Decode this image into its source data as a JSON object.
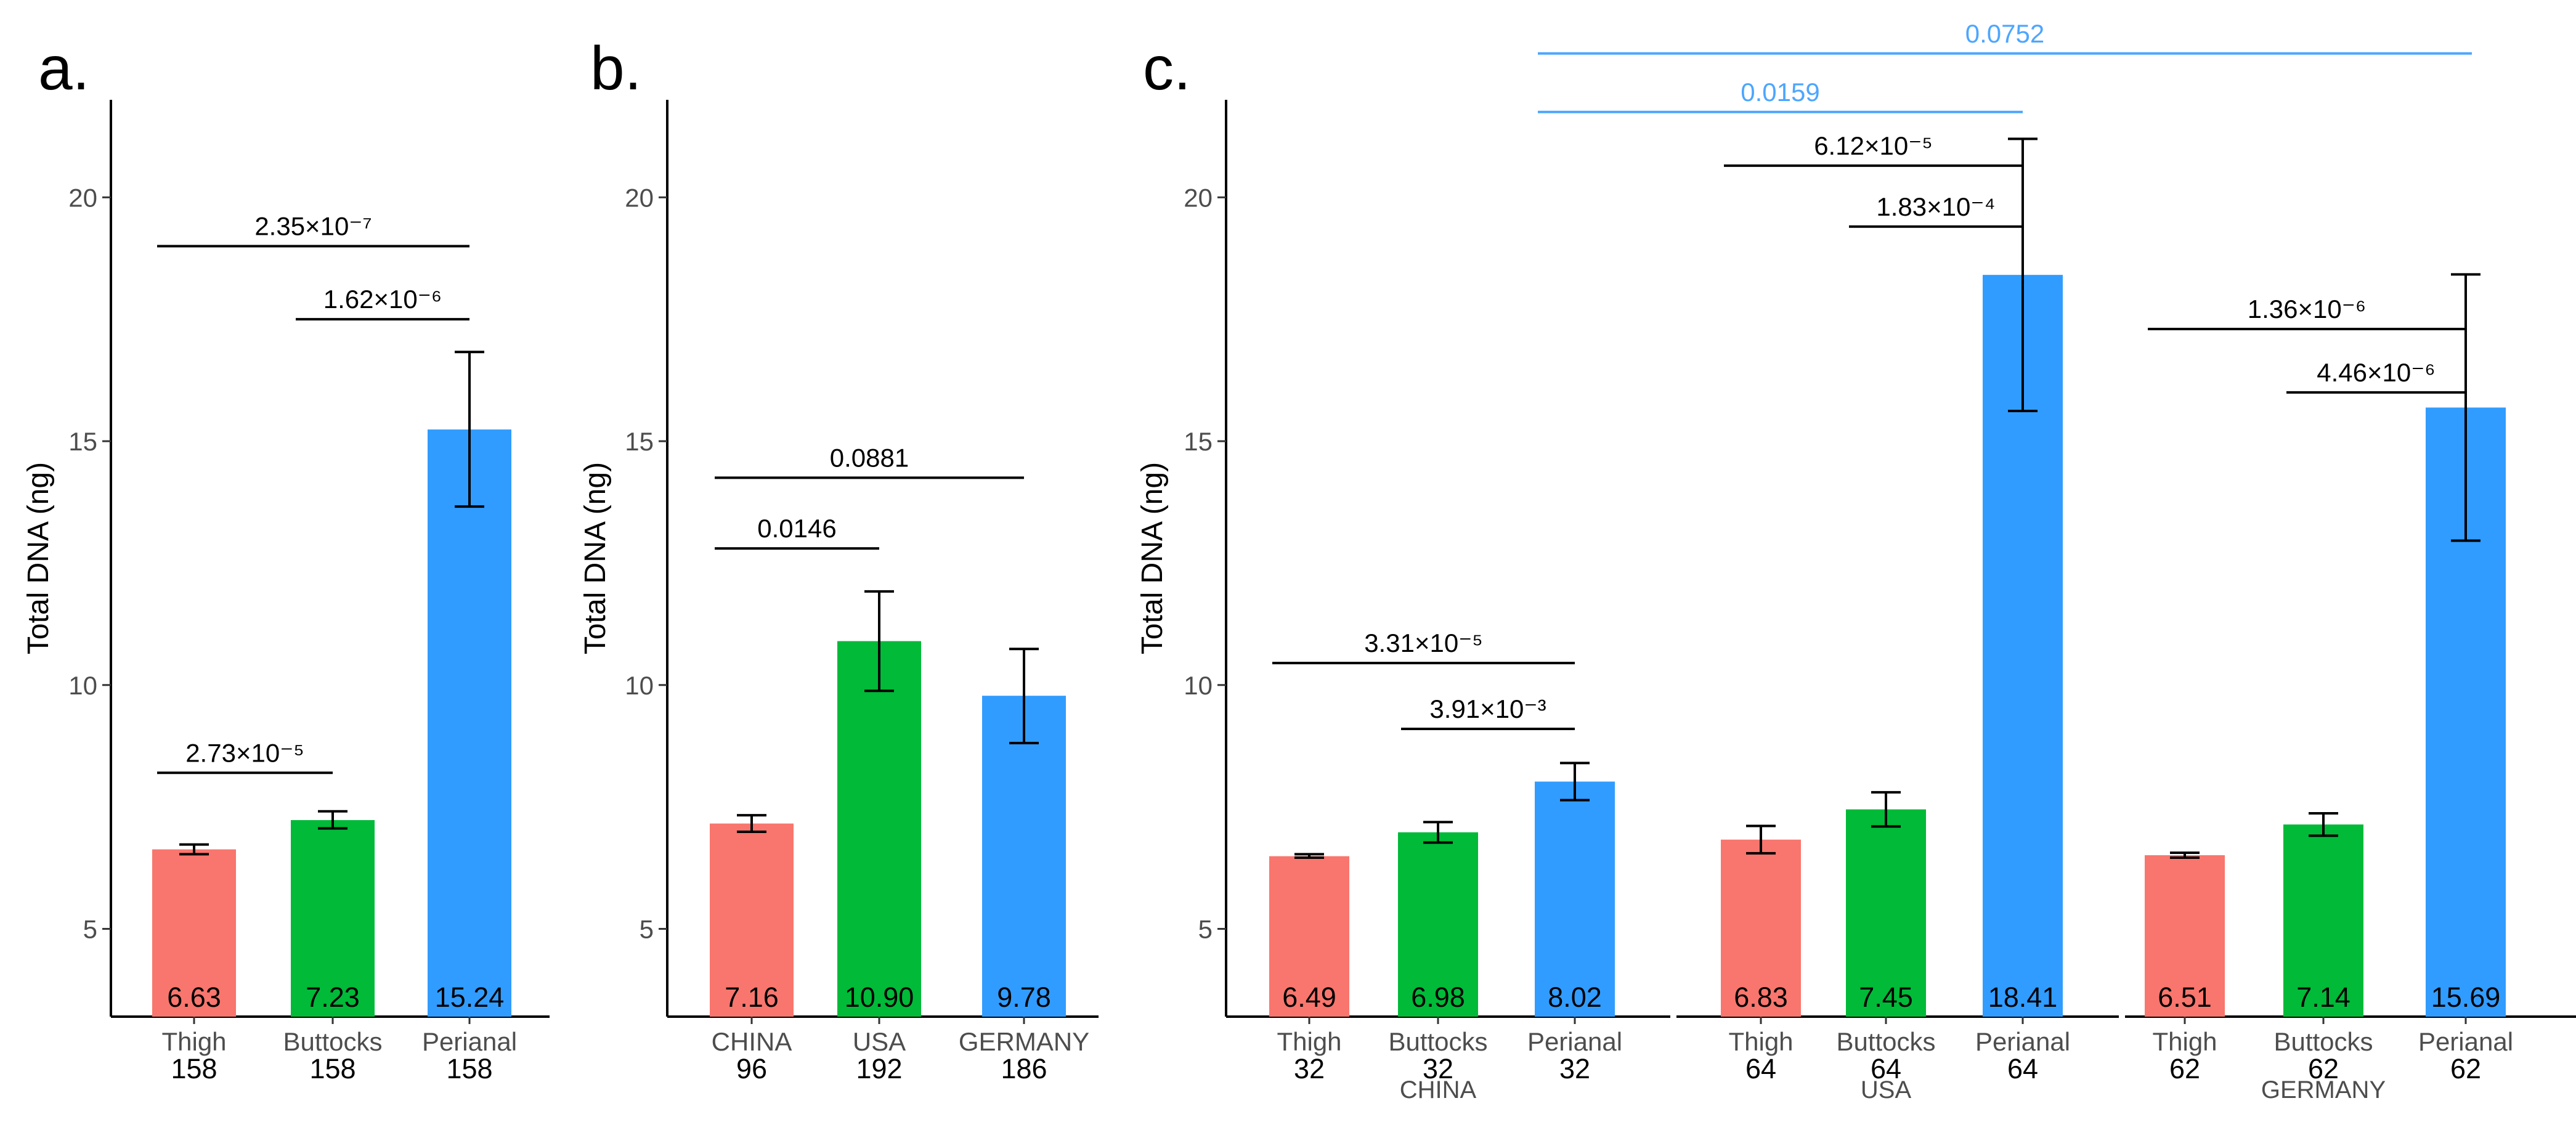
{
  "y_axis_label": "Total DNA (ng)",
  "chart_data": [
    {
      "type": "bar",
      "panel": "a.",
      "ylabel": "Total DNA (ng)",
      "ylim": [
        3.2,
        22
      ],
      "yticks": [
        5,
        10,
        15,
        20
      ],
      "categories": [
        "Thigh",
        "Buttocks",
        "Perianal"
      ],
      "n": [
        "158",
        "158",
        "158"
      ],
      "values": [
        6.63,
        7.23,
        15.24
      ],
      "value_labels": [
        "6.63",
        "7.23",
        "15.24"
      ],
      "errors": [
        [
          6.53,
          6.73
        ],
        [
          7.06,
          7.41
        ],
        [
          13.66,
          16.83
        ]
      ],
      "colors": [
        "#F8766D",
        "#00BA38",
        "#319CFF"
      ],
      "groups": [],
      "comparisons": [
        {
          "label": "2.35×10⁻⁷",
          "from": 0,
          "to": 2,
          "y": 19.0,
          "color": "#000000"
        },
        {
          "label": "1.62×10⁻⁶",
          "from": 1,
          "to": 2,
          "y": 17.5,
          "color": "#000000"
        },
        {
          "label": "2.73×10⁻⁵",
          "from": 0,
          "to": 1,
          "y": 8.2,
          "color": "#000000"
        }
      ]
    },
    {
      "type": "bar",
      "panel": "b.",
      "ylabel": "Total DNA (ng)",
      "ylim": [
        3.2,
        22
      ],
      "yticks": [
        5,
        10,
        15,
        20
      ],
      "categories": [
        "CHINA",
        "USA",
        "GERMANY"
      ],
      "n": [
        "96",
        "192",
        "186"
      ],
      "values": [
        7.16,
        10.9,
        9.78
      ],
      "value_labels": [
        "7.16",
        "10.90",
        "9.78"
      ],
      "errors": [
        [
          6.99,
          7.33
        ],
        [
          9.88,
          11.92
        ],
        [
          8.81,
          10.74
        ]
      ],
      "colors": [
        "#F8766D",
        "#00BA38",
        "#319CFF"
      ],
      "groups": [],
      "comparisons": [
        {
          "label": "0.0881",
          "from": 0,
          "to": 2,
          "y": 14.25,
          "color": "#000000"
        },
        {
          "label": "0.0146",
          "from": 0,
          "to": 1,
          "y": 12.8,
          "color": "#000000"
        }
      ]
    },
    {
      "type": "bar",
      "panel": "c.",
      "ylabel": "Total DNA (ng)",
      "ylim": [
        3.2,
        22
      ],
      "yticks": [
        5,
        10,
        15,
        20
      ],
      "categories": [
        "Thigh",
        "Buttocks",
        "Perianal",
        "Thigh",
        "Buttocks",
        "Perianal",
        "Thigh",
        "Buttocks",
        "Perianal"
      ],
      "n": [
        "32",
        "32",
        "32",
        "64",
        "64",
        "64",
        "62",
        "62",
        "62"
      ],
      "values": [
        6.49,
        6.98,
        8.02,
        6.83,
        7.45,
        18.41,
        6.51,
        7.14,
        15.69
      ],
      "value_labels": [
        "6.49",
        "6.98",
        "8.02",
        "6.83",
        "7.45",
        "18.41",
        "6.51",
        "7.14",
        "15.69"
      ],
      "errors": [
        [
          6.46,
          6.53
        ],
        [
          6.77,
          7.19
        ],
        [
          7.64,
          8.4
        ],
        [
          6.55,
          7.11
        ],
        [
          7.1,
          7.8
        ],
        [
          15.62,
          21.2
        ],
        [
          6.46,
          6.56
        ],
        [
          6.91,
          7.37
        ],
        [
          12.96,
          18.42
        ]
      ],
      "colors": [
        "#F8766D",
        "#00BA38",
        "#319CFF",
        "#F8766D",
        "#00BA38",
        "#319CFF",
        "#F8766D",
        "#00BA38",
        "#319CFF"
      ],
      "groups": [
        {
          "label": "CHINA",
          "start": 0,
          "end": 2
        },
        {
          "label": "USA",
          "start": 3,
          "end": 5
        },
        {
          "label": "GERMANY",
          "start": 6,
          "end": 8
        }
      ],
      "comparisons": [
        {
          "label": "0.0752",
          "from": 2,
          "to": 8,
          "y": 22.95,
          "color": "#4DA6FF"
        },
        {
          "label": "0.0159",
          "from": 2,
          "to": 5,
          "y": 21.75,
          "color": "#4DA6FF"
        },
        {
          "label": "6.12×10⁻⁵",
          "from": 3,
          "to": 5,
          "y": 20.65,
          "color": "#000000"
        },
        {
          "label": "1.83×10⁻⁴",
          "from": 4,
          "to": 5,
          "y": 19.4,
          "color": "#000000"
        },
        {
          "label": "1.36×10⁻⁶",
          "from": 6,
          "to": 8,
          "y": 17.3,
          "color": "#000000"
        },
        {
          "label": "4.46×10⁻⁶",
          "from": 7,
          "to": 8,
          "y": 16.0,
          "color": "#000000"
        },
        {
          "label": "3.31×10⁻⁵",
          "from": 0,
          "to": 2,
          "y": 10.45,
          "color": "#000000"
        },
        {
          "label": "3.91×10⁻³",
          "from": 1,
          "to": 2,
          "y": 9.1,
          "color": "#000000"
        }
      ]
    }
  ]
}
